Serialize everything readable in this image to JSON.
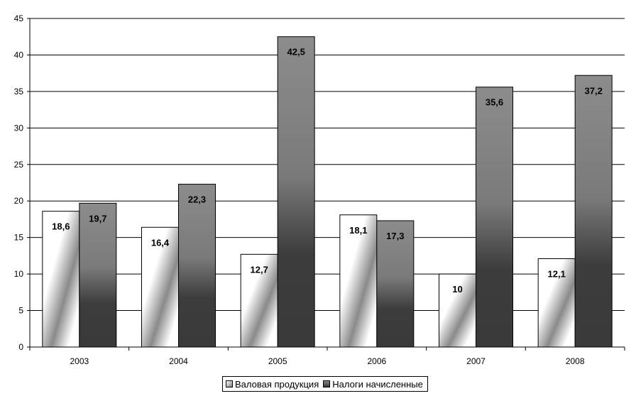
{
  "chart_data": {
    "type": "bar",
    "title": "",
    "xlabel": "",
    "ylabel": "",
    "categories": [
      "2003",
      "2004",
      "2005",
      "2006",
      "2007",
      "2008"
    ],
    "series": [
      {
        "name": "Валовая продукция",
        "values": [
          18.6,
          16.4,
          12.7,
          18.1,
          10,
          12.1
        ],
        "labels": [
          "18,6",
          "16,4",
          "12,7",
          "18,1",
          "10",
          "12,1"
        ]
      },
      {
        "name": "Налоги начисленные",
        "values": [
          19.7,
          22.3,
          42.5,
          17.3,
          35.6,
          37.2
        ],
        "labels": [
          "19,7",
          "22,3",
          "42,5",
          "17,3",
          "35,6",
          "37,2"
        ]
      }
    ],
    "ylim": [
      0,
      45
    ],
    "yticks": [
      0,
      5,
      10,
      15,
      20,
      25,
      30,
      35,
      40,
      45
    ],
    "grid": true,
    "legend_position": "bottom-center",
    "colors": {
      "axis": "#000000",
      "gridline": "#000000"
    }
  }
}
